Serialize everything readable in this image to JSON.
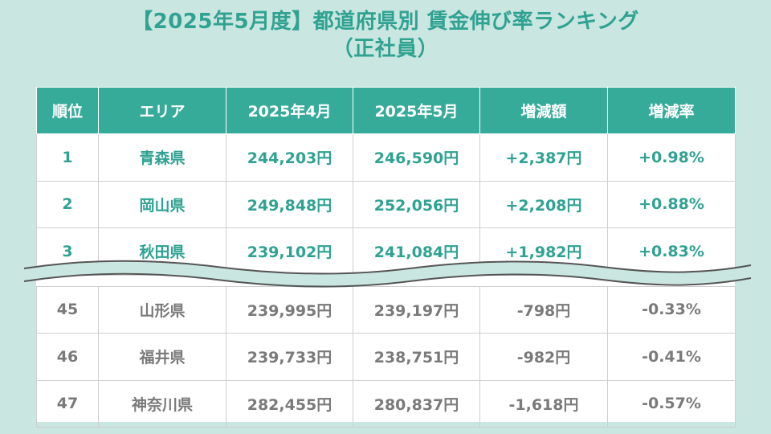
{
  "title": {
    "line1": "【2025年5月度】都道府県別 賃金伸び率ランキング",
    "line2": "（正社員）"
  },
  "table": {
    "headers": [
      "順位",
      "エリア",
      "2025年4月",
      "2025年5月",
      "増減額",
      "増減率"
    ],
    "top_rows": [
      [
        "1",
        "青森県",
        "244,203円",
        "246,590円",
        "+2,387円",
        "+0.98%"
      ],
      [
        "2",
        "岡山県",
        "249,848円",
        "252,056円",
        "+2,208円",
        "+0.88%"
      ],
      [
        "3",
        "秋田県",
        "239,102円",
        "241,084円",
        "+1,982円",
        "+0.83%"
      ]
    ],
    "bottom_rows": [
      [
        "45",
        "山形県",
        "239,995円",
        "239,197円",
        "-798円",
        "-0.33%"
      ],
      [
        "46",
        "福井県",
        "239,733円",
        "238,751円",
        "-982円",
        "-0.41%"
      ],
      [
        "47",
        "神奈川県",
        "282,455円",
        "280,837円",
        "-1,618円",
        "-0.57%"
      ]
    ]
  },
  "colors": {
    "accent": "#37ab9a",
    "background": "#c9e6e0",
    "title_text": "#2fa292",
    "lower_text": "#7a7a7a"
  }
}
